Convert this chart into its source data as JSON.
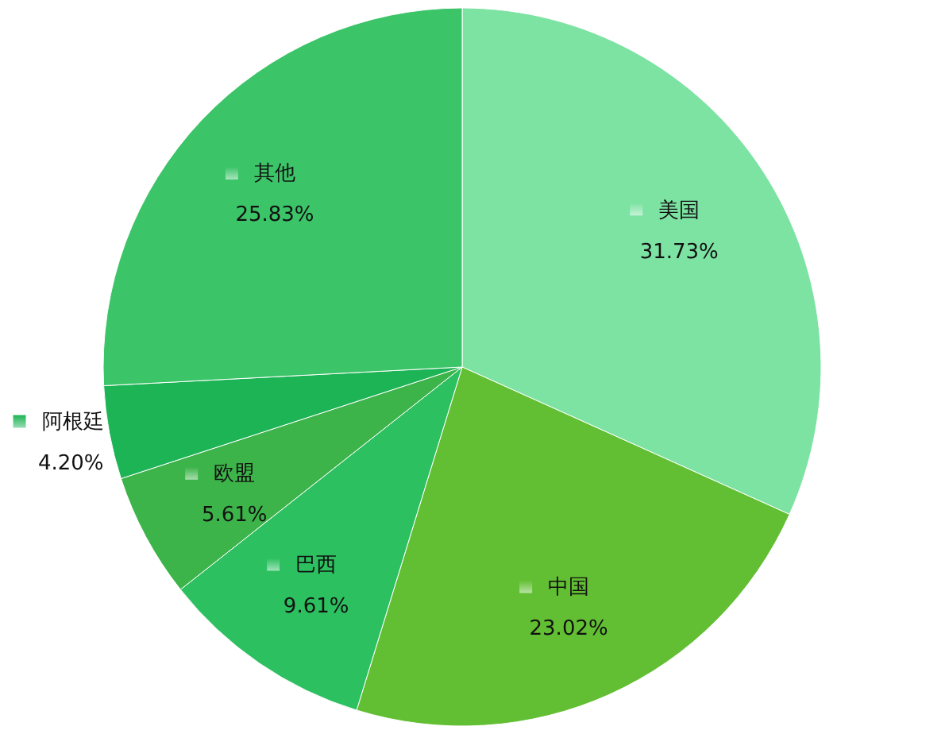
{
  "chart_data": {
    "type": "pie",
    "categories": [
      "美国",
      "中国",
      "巴西",
      "欧盟",
      "阿根廷",
      "其他"
    ],
    "values": [
      31.73,
      23.02,
      9.61,
      5.61,
      4.2,
      25.83
    ],
    "colors": [
      "#7de3a3",
      "#62bf33",
      "#2cc060",
      "#3cb449",
      "#1cb455",
      "#3cc468"
    ],
    "value_labels": [
      "31.73%",
      "23.02%",
      "9.61%",
      "5.61%",
      "4.20%",
      "25.83%"
    ],
    "legend": "left"
  }
}
